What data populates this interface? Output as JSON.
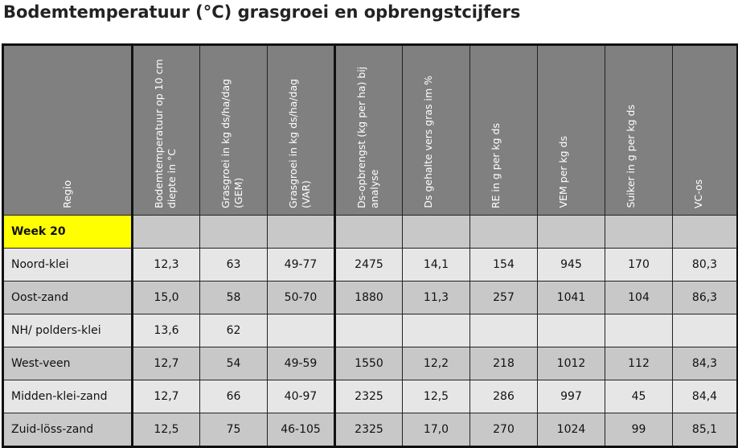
{
  "title": "Bodemtemperatuur (°C) grasgroei en opbrengstcijfers",
  "table": {
    "headers": [
      "Regio",
      "Bodemtemperatuur op 10 cm diepte in °C",
      "Grasgroei in kg ds/ha/dag (GEM)",
      "Grasgroei in kg ds/ha/dag (VAR)",
      "Ds-opbrengst (kg per ha) bij analyse",
      "Ds gehalte vers gras im %",
      "RE in g per kg ds",
      "VEM per kg ds",
      "Suiker in g per kg ds",
      "VC-os"
    ],
    "rows": [
      [
        "Week 20"
      ],
      [
        "Noord-klei",
        "12,3",
        "63",
        "49-77",
        "2475",
        "14,1",
        "154",
        "945",
        "170",
        "80,3"
      ],
      [
        "Oost-zand",
        "15,0",
        "58",
        "50-70",
        "1880",
        "11,3",
        "257",
        "1041",
        "104",
        "86,3"
      ],
      [
        "NH/ polders-klei",
        "13,6",
        "62"
      ],
      [
        "West-veen",
        "12,7",
        "54",
        "49-59",
        "1550",
        "12,2",
        "218",
        "1012",
        "112",
        "84,3"
      ],
      [
        "Midden-klei-zand",
        "12,7",
        "66",
        "40-97",
        "2325",
        "12,5",
        "286",
        "997",
        "45",
        "84,4"
      ],
      [
        "Zuid-löss-zand",
        "12,5",
        "75",
        "46-105",
        "2325",
        "17,0",
        "270",
        "1024",
        "99",
        "85,1"
      ]
    ]
  }
}
